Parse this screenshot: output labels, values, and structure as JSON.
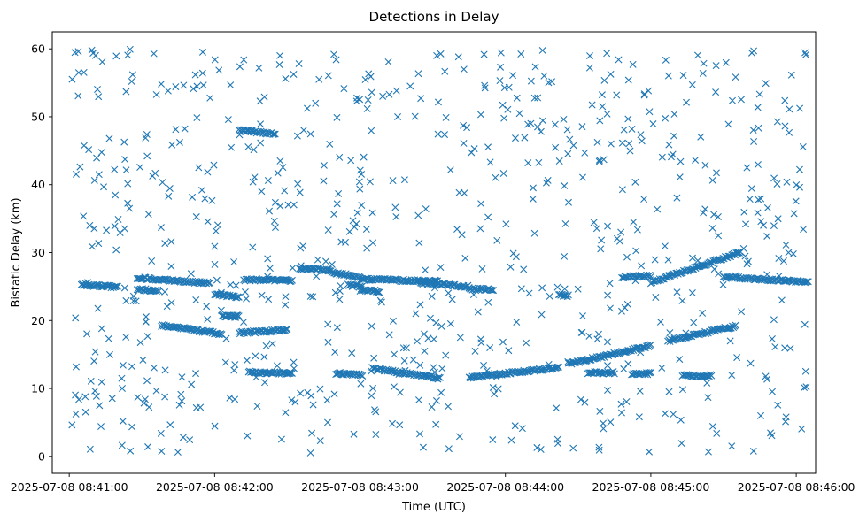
{
  "chart_data": {
    "type": "scatter",
    "title": "Detections in Delay",
    "xlabel": "Time (UTC)",
    "ylabel": "Bistatic Delay (km)",
    "marker": "x",
    "color": "#1f77b4",
    "grid": false,
    "legend": "none",
    "xlim": [
      "2025-07-08 08:40:53",
      "2025-07-08 08:46:08"
    ],
    "ylim": [
      -2.5,
      62.5
    ],
    "x_ticks": [
      "2025-07-08 08:41:00",
      "2025-07-08 08:42:00",
      "2025-07-08 08:43:00",
      "2025-07-08 08:44:00",
      "2025-07-08 08:45:00",
      "2025-07-08 08:46:00"
    ],
    "y_ticks": [
      "0",
      "10",
      "20",
      "30",
      "40",
      "50",
      "60"
    ],
    "tracks": [
      {
        "start": "2025-07-08 08:41:05",
        "end": "2025-07-08 08:41:20",
        "y_start": 25.3,
        "y_end": 24.9
      },
      {
        "start": "2025-07-08 08:41:28",
        "end": "2025-07-08 08:41:37",
        "y_start": 24.6,
        "y_end": 24.4
      },
      {
        "start": "2025-07-08 08:41:28",
        "end": "2025-07-08 08:41:58",
        "y_start": 26.3,
        "y_end": 25.5
      },
      {
        "start": "2025-07-08 08:41:38",
        "end": "2025-07-08 08:42:03",
        "y_start": 19.3,
        "y_end": 18.0
      },
      {
        "start": "2025-07-08 08:42:00",
        "end": "2025-07-08 08:42:10",
        "y_start": 23.8,
        "y_end": 23.5
      },
      {
        "start": "2025-07-08 08:42:03",
        "end": "2025-07-08 08:42:10",
        "y_start": 20.7,
        "y_end": 20.6
      },
      {
        "start": "2025-07-08 08:42:10",
        "end": "2025-07-08 08:42:25",
        "y_start": 48.0,
        "y_end": 47.5
      },
      {
        "start": "2025-07-08 08:42:10",
        "end": "2025-07-08 08:42:30",
        "y_start": 18.2,
        "y_end": 18.6
      },
      {
        "start": "2025-07-08 08:42:12",
        "end": "2025-07-08 08:42:32",
        "y_start": 26.0,
        "y_end": 25.9
      },
      {
        "start": "2025-07-08 08:42:14",
        "end": "2025-07-08 08:42:32",
        "y_start": 12.4,
        "y_end": 12.2
      },
      {
        "start": "2025-07-08 08:42:35",
        "end": "2025-07-08 08:42:47",
        "y_start": 27.6,
        "y_end": 27.5
      },
      {
        "start": "2025-07-08 08:42:47",
        "end": "2025-07-08 08:43:05",
        "y_start": 27.2,
        "y_end": 26.0
      },
      {
        "start": "2025-07-08 08:42:50",
        "end": "2025-07-08 08:43:01",
        "y_start": 12.2,
        "y_end": 12.0
      },
      {
        "start": "2025-07-08 08:42:55",
        "end": "2025-07-08 08:43:01",
        "y_start": 25.2,
        "y_end": 25.0
      },
      {
        "start": "2025-07-08 08:43:00",
        "end": "2025-07-08 08:43:08",
        "y_start": 24.5,
        "y_end": 24.3
      },
      {
        "start": "2025-07-08 08:43:05",
        "end": "2025-07-08 08:43:32",
        "y_start": 26.1,
        "y_end": 25.7
      },
      {
        "start": "2025-07-08 08:43:05",
        "end": "2025-07-08 08:43:33",
        "y_start": 13.0,
        "y_end": 11.5
      },
      {
        "start": "2025-07-08 08:43:25",
        "end": "2025-07-08 08:43:45",
        "y_start": 25.5,
        "y_end": 25.0
      },
      {
        "start": "2025-07-08 08:43:45",
        "end": "2025-07-08 08:43:55",
        "y_start": 24.6,
        "y_end": 24.6
      },
      {
        "start": "2025-07-08 08:43:45",
        "end": "2025-07-08 08:44:22",
        "y_start": 11.6,
        "y_end": 13.1
      },
      {
        "start": "2025-07-08 08:44:22",
        "end": "2025-07-08 08:44:26",
        "y_start": 23.8,
        "y_end": 23.6
      },
      {
        "start": "2025-07-08 08:44:26",
        "end": "2025-07-08 08:45:00",
        "y_start": 13.6,
        "y_end": 16.3
      },
      {
        "start": "2025-07-08 08:44:34",
        "end": "2025-07-08 08:44:45",
        "y_start": 12.3,
        "y_end": 12.3
      },
      {
        "start": "2025-07-08 08:44:48",
        "end": "2025-07-08 08:45:00",
        "y_start": 26.4,
        "y_end": 26.6
      },
      {
        "start": "2025-07-08 08:44:52",
        "end": "2025-07-08 08:45:00",
        "y_start": 12.2,
        "y_end": 12.2
      },
      {
        "start": "2025-07-08 08:45:00",
        "end": "2025-07-08 08:45:37",
        "y_start": 25.6,
        "y_end": 30.0
      },
      {
        "start": "2025-07-08 08:45:07",
        "end": "2025-07-08 08:45:35",
        "y_start": 17.0,
        "y_end": 19.2
      },
      {
        "start": "2025-07-08 08:45:13",
        "end": "2025-07-08 08:45:25",
        "y_start": 11.9,
        "y_end": 11.9
      },
      {
        "start": "2025-07-08 08:45:30",
        "end": "2025-07-08 08:46:05",
        "y_start": 26.4,
        "y_end": 25.7
      }
    ],
    "noise": {
      "count": 760,
      "x_range": [
        "2025-07-08 08:41:00",
        "2025-07-08 08:46:05"
      ],
      "y_range": [
        0.5,
        60
      ]
    }
  }
}
